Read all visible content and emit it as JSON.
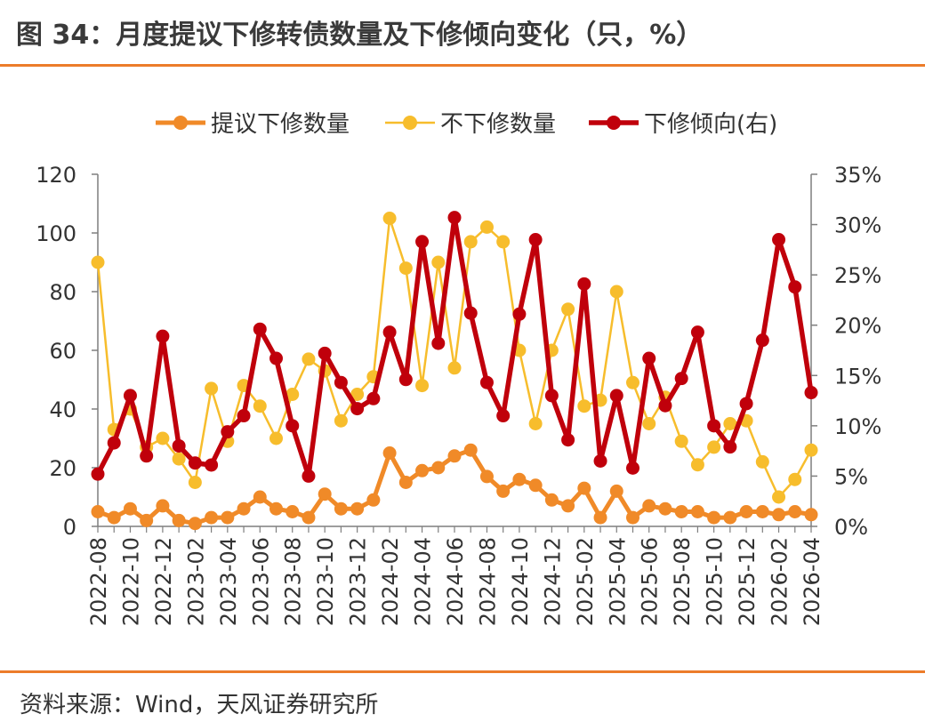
{
  "header": {
    "title": "图 34：月度提议下修转债数量及下修倾向变化（只，%）"
  },
  "footer": {
    "source": "资料来源：Wind，天风证券研究所"
  },
  "chart_data": {
    "type": "line",
    "title": "图 34：月度提议下修转债数量及下修倾向变化（只，%）",
    "x": [
      "2022-08",
      "2022-09",
      "2022-10",
      "2022-11",
      "2022-12",
      "2023-01",
      "2023-02",
      "2023-03",
      "2023-04",
      "2023-05",
      "2023-06",
      "2023-07",
      "2023-08",
      "2023-09",
      "2023-10",
      "2023-11",
      "2023-12",
      "2024-01",
      "2024-02",
      "2024-03",
      "2024-04",
      "2024-05",
      "2024-06",
      "2024-07",
      "2024-08",
      "2024-09",
      "2024-10",
      "2024-11",
      "2024-12",
      "2025-01",
      "2025-02",
      "2025-03",
      "2025-04",
      "2025-05",
      "2025-06",
      "2025-07",
      "2025-08",
      "2025-09",
      "2025-10",
      "2025-11",
      "2025-12",
      "2026-01",
      "2026-02",
      "2026-03",
      "2026-04"
    ],
    "x_tick_labels": [
      "2022-08",
      "2022-10",
      "2022-12",
      "2023-02",
      "2023-04",
      "2023-06",
      "2023-08",
      "2023-10",
      "2023-12",
      "2024-02",
      "2024-04",
      "2024-06",
      "2024-08",
      "2024-10",
      "2024-12",
      "2025-02",
      "2025-04",
      "2025-06",
      "2025-08",
      "2025-10",
      "2025-12",
      "2026-02",
      "2026-04"
    ],
    "y_left": {
      "range": [
        0,
        120
      ],
      "ticks": [
        "0",
        "20",
        "40",
        "60",
        "80",
        "100",
        "120"
      ]
    },
    "y_right": {
      "range": [
        0,
        35
      ],
      "ticks": [
        "0%",
        "5%",
        "10%",
        "15%",
        "20%",
        "25%",
        "30%",
        "35%"
      ]
    },
    "legend_position": "top-center",
    "grid": false,
    "series": [
      {
        "name": "提议下修数量",
        "axis": "left",
        "color": "#f08a28",
        "values": [
          5,
          3,
          6,
          2,
          7,
          2,
          1,
          3,
          3,
          6,
          10,
          6,
          5,
          3,
          11,
          6,
          6,
          9,
          25,
          15,
          19,
          20,
          24,
          26,
          17,
          12,
          16,
          14,
          9,
          7,
          13,
          3,
          12,
          3,
          7,
          6,
          5,
          5,
          3,
          3,
          5,
          5,
          4,
          5,
          4
        ]
      },
      {
        "name": "不下修数量",
        "axis": "left",
        "color": "#f7bd2c",
        "values": [
          90,
          33,
          40,
          27,
          30,
          23,
          15,
          47,
          29,
          48,
          41,
          30,
          45,
          57,
          53,
          36,
          45,
          51,
          105,
          88,
          48,
          90,
          54,
          97,
          102,
          97,
          60,
          35,
          60,
          74,
          41,
          43,
          80,
          49,
          35,
          44,
          29,
          21,
          27,
          35,
          36,
          22,
          10,
          16,
          26
        ]
      },
      {
        "name": "下修倾向(右)",
        "axis": "right",
        "color": "#c0000b",
        "values": [
          5.2,
          8.3,
          13.0,
          7.0,
          18.9,
          8.0,
          6.3,
          6.1,
          9.4,
          11.0,
          19.6,
          16.7,
          10.0,
          5.0,
          17.2,
          14.3,
          11.7,
          12.7,
          19.3,
          14.6,
          28.3,
          18.2,
          30.7,
          21.2,
          14.3,
          11.0,
          21.1,
          28.5,
          13.0,
          8.6,
          24.1,
          6.5,
          13.0,
          5.8,
          16.7,
          12.0,
          14.7,
          19.3,
          10.0,
          7.9,
          12.2,
          18.5,
          28.5,
          23.8,
          13.3
        ]
      }
    ]
  }
}
